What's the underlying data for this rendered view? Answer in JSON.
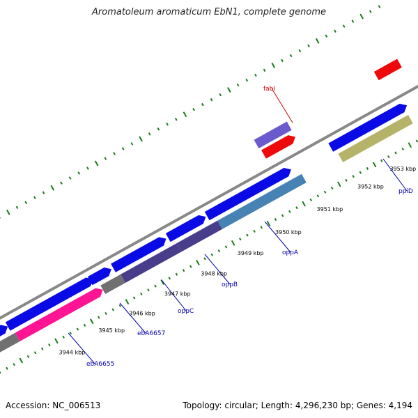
{
  "header": {
    "title": "Aromatoleum aromaticum EbN1, complete genome"
  },
  "footer": {
    "accession": "Accession: NC_006513",
    "summary": "Topology: circular; Length: 4,296,230 bp; Genes: 4,194"
  },
  "colors": {
    "backbone": "#888888",
    "tick": "#1a7a1a",
    "blue": "#0a0ae6",
    "red": "#ee0a0a",
    "purple": "#6a5acd",
    "khaki": "#b5b26a",
    "steelblue": "#4682b4",
    "darkslate": "#483d8b",
    "pink": "#ff1493",
    "gray": "#707070",
    "label_red": "#cc0000",
    "label_blue": "#0000aa"
  },
  "ticks": [
    "3944 kbp",
    "3945 kbp",
    "3946 kbp",
    "3947 kbp",
    "3948 kbp",
    "3949 kbp",
    "3950 kbp",
    "3951 kbp",
    "3952 kbp",
    "3953 kbp"
  ],
  "gene_labels": [
    {
      "text": "fabI",
      "color": "red"
    },
    {
      "text": "ppiD",
      "color": "blue"
    },
    {
      "text": "oppA",
      "color": "blue"
    },
    {
      "text": "oppB",
      "color": "blue"
    },
    {
      "text": "oppC",
      "color": "blue"
    },
    {
      "text": "ebA6657",
      "color": "blue"
    },
    {
      "text": "ebA6655",
      "color": "blue"
    }
  ]
}
